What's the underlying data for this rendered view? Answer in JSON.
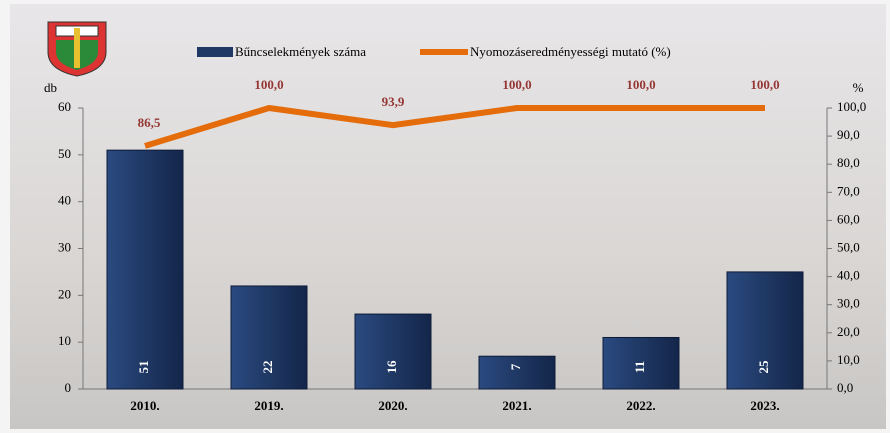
{
  "chart_data": {
    "type": "bar-line",
    "categories": [
      "2010.",
      "2019.",
      "2020.",
      "2021.",
      "2022.",
      "2023."
    ],
    "series": [
      {
        "name": "Bűncselekmények száma",
        "color": "#1f3864",
        "values": [
          51,
          22,
          16,
          7,
          11,
          25
        ]
      },
      {
        "name": "Nyomozáseredményességi mutató (%)",
        "color": "#e46c0a",
        "axis": "y2",
        "values": [
          86.5,
          100,
          93.9,
          100,
          100,
          100
        ],
        "value_labels": [
          "86,5",
          "100,0",
          "93,9",
          "100,0",
          "100,0",
          "100,0"
        ]
      }
    ],
    "y_label": "db",
    "y2_label": "%",
    "ylim": [
      0,
      60
    ],
    "yticks": [
      0,
      10,
      20,
      30,
      40,
      50,
      60
    ],
    "y2lim": [
      0,
      100
    ],
    "y2ticks": [
      {
        "value": 0,
        "label": "0,0"
      },
      {
        "value": 10,
        "label": "10,0"
      },
      {
        "value": 20,
        "label": "20,0"
      },
      {
        "value": 30,
        "label": "30,0"
      },
      {
        "value": 40,
        "label": "40,0"
      },
      {
        "value": 50,
        "label": "50,0"
      },
      {
        "value": 60,
        "label": "60,0"
      },
      {
        "value": 70,
        "label": "70,0"
      },
      {
        "value": 80,
        "label": "80,0"
      },
      {
        "value": 90,
        "label": "90,0"
      },
      {
        "value": 100,
        "label": "100,0"
      }
    ],
    "label_color": "#953735"
  }
}
